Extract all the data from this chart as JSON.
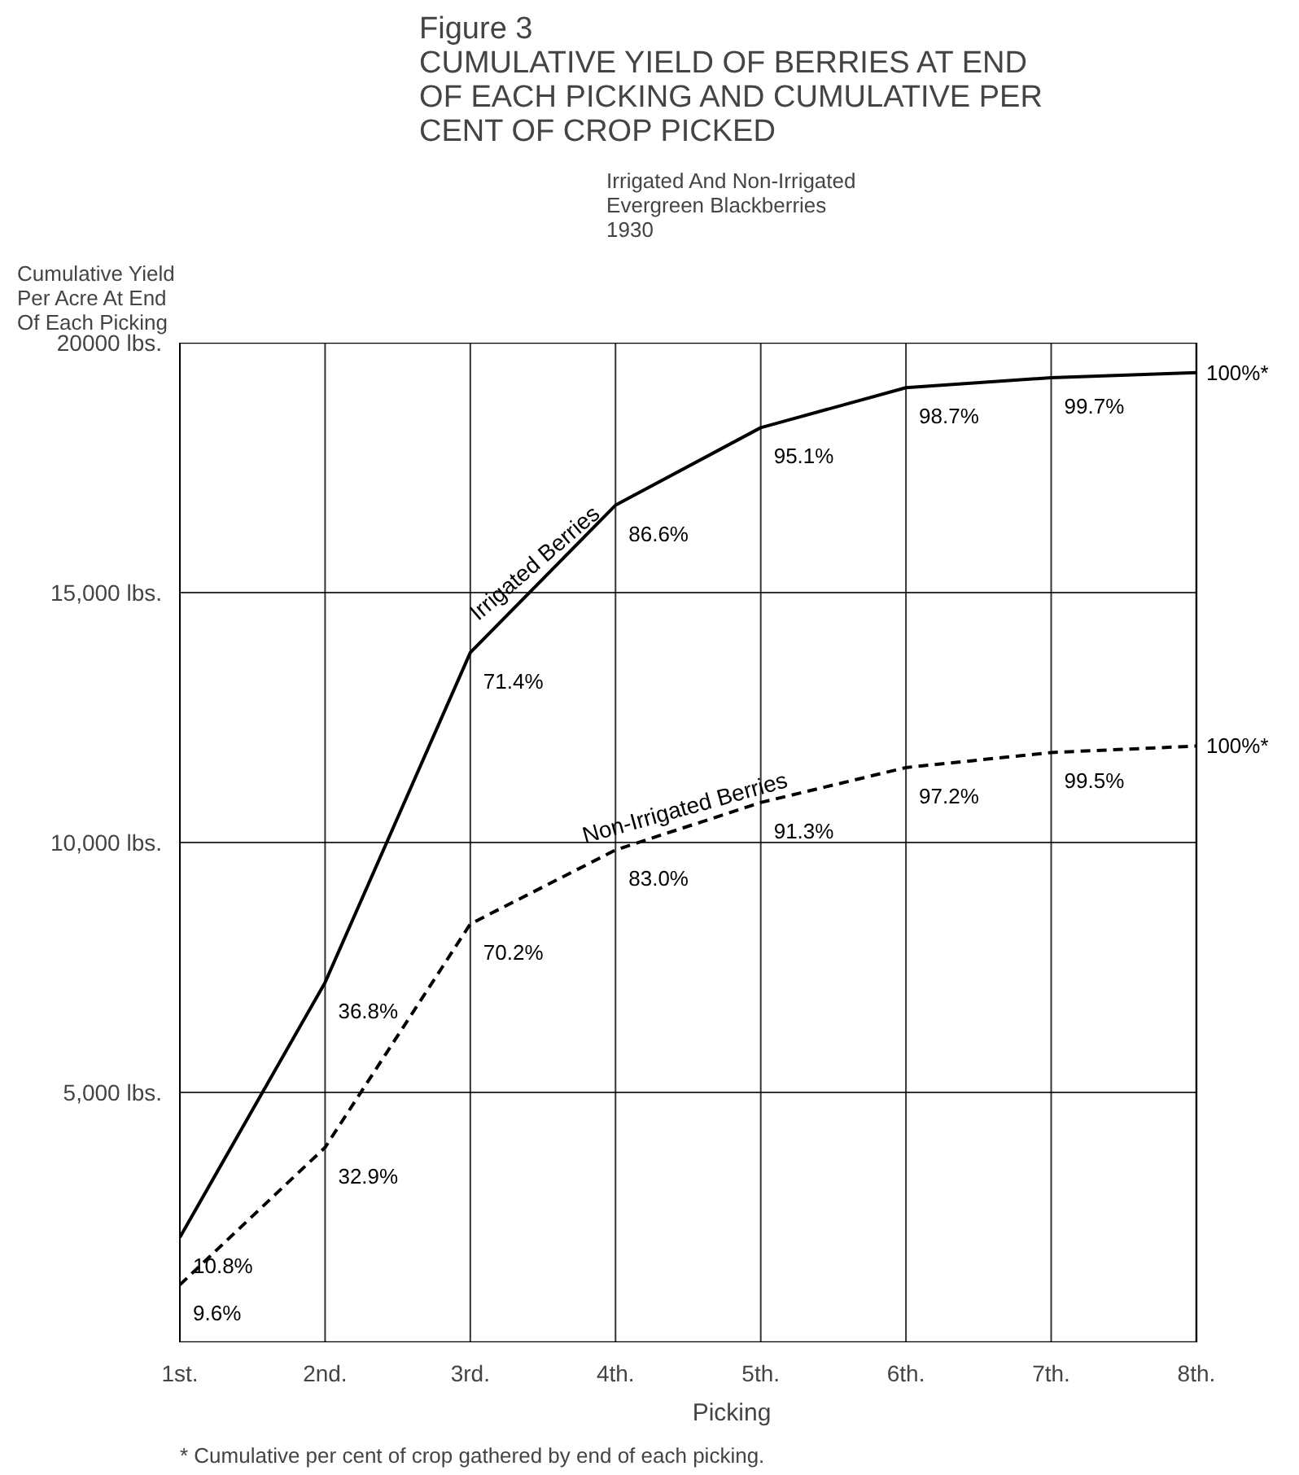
{
  "chart_data": {
    "type": "line",
    "title": "Figure 3\nCUMULATIVE YIELD OF BERRIES AT END\nOF EACH PICKING AND CUMULATIVE PER\nCENT OF CROP PICKED",
    "subtitle": "Irrigated And Non-Irrigated\nEvergreen Blackberries\n1930",
    "ylabel": "Cumulative Yield\nPer Acre At End\nOf Each Picking",
    "xlabel": "Picking",
    "categories": [
      "1st.",
      "2nd.",
      "3rd.",
      "4th.",
      "5th.",
      "6th.",
      "7th.",
      "8th."
    ],
    "series": [
      {
        "name": "Irrigated Berries",
        "color": "#000000",
        "line_style": "solid",
        "values": [
          2100,
          7200,
          13800,
          16750,
          18300,
          19100,
          19300,
          19400
        ]
      },
      {
        "name": "Non-Irrigated Berries",
        "color": "#000000",
        "line_style": "dashed",
        "values": [
          1150,
          3900,
          8370,
          9850,
          10800,
          11500,
          11800,
          11930
        ]
      }
    ],
    "ylim": [
      0,
      20000
    ],
    "yticks": [
      {
        "value": 5000,
        "label": "5,000 lbs."
      },
      {
        "value": 10000,
        "label": "10,000 lbs."
      },
      {
        "value": 15000,
        "label": "15,000 lbs."
      },
      {
        "value": 20000,
        "label": "20000 lbs."
      }
    ],
    "grid": true,
    "annotations": [
      {
        "text": "10.8%",
        "x": "1st.",
        "y": 2100
      },
      {
        "text": "36.8%",
        "x": "2nd.",
        "y": 7200
      },
      {
        "text": "71.4%",
        "x": "3rd.",
        "y": 13800
      },
      {
        "text": "86.6%",
        "x": "4th.",
        "y": 16750
      },
      {
        "text": "95.1%",
        "x": "5th.",
        "y": 18300
      },
      {
        "text": "98.7%",
        "x": "6th.",
        "y": 19100
      },
      {
        "text": "99.7%",
        "x": "7th.",
        "y": 19300
      },
      {
        "text": "100%*",
        "x": "8th.",
        "y": 19400
      },
      {
        "text": "9.6%",
        "x": "1st.",
        "y": 1150
      },
      {
        "text": "32.9%",
        "x": "2nd.",
        "y": 3900
      },
      {
        "text": "70.2%",
        "x": "3rd.",
        "y": 8370
      },
      {
        "text": "83.0%",
        "x": "4th.",
        "y": 9850
      },
      {
        "text": "91.3%",
        "x": "5th.",
        "y": 10800
      },
      {
        "text": "97.2%",
        "x": "6th.",
        "y": 11500
      },
      {
        "text": "99.5%",
        "x": "7th.",
        "y": 11800
      },
      {
        "text": "100%*",
        "x": "8th.",
        "y": 11930
      },
      "* Cumulative per cent of crop gathered by end of each picking."
    ]
  }
}
